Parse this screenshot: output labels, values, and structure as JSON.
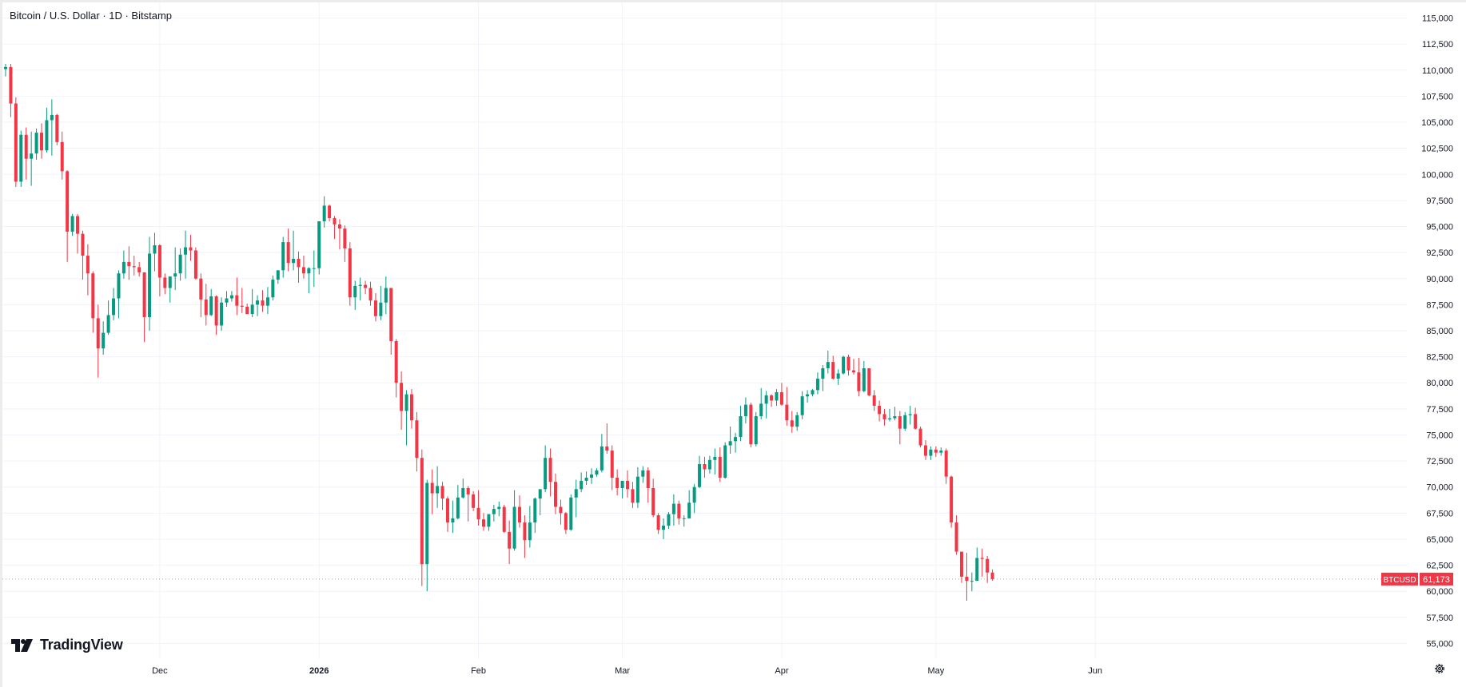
{
  "header": {
    "title": "Bitcoin / U.S. Dollar · 1D · Bitstamp"
  },
  "branding": {
    "logo_text": "TradingView"
  },
  "colors": {
    "up": "#089981",
    "down": "#f23645",
    "grid": "#f0f3fa",
    "text": "#131722",
    "price_label_bg": "#f23645"
  },
  "icons": [
    "tradingview-logo-icon",
    "gear-icon"
  ],
  "price_label": {
    "symbol": "BTCUSD",
    "value": "61,173"
  },
  "chart_data": {
    "type": "candlestick",
    "y_ticks": [
      "115,000",
      "112,500",
      "110,000",
      "107,500",
      "105,000",
      "102,500",
      "100,000",
      "97,500",
      "95,000",
      "92,500",
      "90,000",
      "87,500",
      "85,000",
      "82,500",
      "80,000",
      "77,500",
      "75,000",
      "72,500",
      "70,000",
      "67,500",
      "65,000",
      "62,500",
      "60,000",
      "57,500",
      "55,000"
    ],
    "ylim": [
      53500,
      116500
    ],
    "x_ticks": [
      {
        "label": "Dec",
        "date": "2025-12-01"
      },
      {
        "label": "2026",
        "date": "2026-01-01"
      },
      {
        "label": "Feb",
        "date": "2026-02-01"
      },
      {
        "label": "Mar",
        "date": "2026-03-01"
      },
      {
        "label": "Apr",
        "date": "2026-04-01"
      },
      {
        "label": "May",
        "date": "2026-05-01"
      },
      {
        "label": "Jun",
        "date": "2026-06-01"
      }
    ],
    "first_date": "2025-11-01",
    "last_price": 61173,
    "candles": [
      [
        110100,
        110600,
        109400,
        110300
      ],
      [
        110300,
        110600,
        105500,
        106800
      ],
      [
        106800,
        107400,
        98800,
        99300
      ],
      [
        99300,
        104200,
        98800,
        103800
      ],
      [
        103800,
        104500,
        99500,
        101500
      ],
      [
        101500,
        104100,
        98900,
        102000
      ],
      [
        102000,
        104400,
        101400,
        104000
      ],
      [
        104000,
        104900,
        101500,
        102300
      ],
      [
        102300,
        106400,
        102100,
        105200
      ],
      [
        105200,
        107200,
        101800,
        105700
      ],
      [
        105700,
        105800,
        102800,
        103100
      ],
      [
        103100,
        104100,
        99500,
        100300
      ],
      [
        100300,
        100400,
        91600,
        94500
      ],
      [
        94500,
        96200,
        94100,
        96000
      ],
      [
        96000,
        96200,
        92400,
        94300
      ],
      [
        94300,
        94600,
        89900,
        92200
      ],
      [
        92200,
        93300,
        88400,
        90500
      ],
      [
        90500,
        90700,
        84800,
        86200
      ],
      [
        86200,
        87500,
        80500,
        83300
      ],
      [
        83300,
        85900,
        82700,
        84800
      ],
      [
        84800,
        87900,
        84600,
        86500
      ],
      [
        86500,
        89100,
        86000,
        88100
      ],
      [
        88100,
        90800,
        86200,
        90500
      ],
      [
        90500,
        92700,
        90000,
        91600
      ],
      [
        91600,
        93100,
        89900,
        91200
      ],
      [
        91200,
        92200,
        90300,
        91100
      ],
      [
        91100,
        91600,
        90200,
        90600
      ],
      [
        90600,
        90600,
        83900,
        86300
      ],
      [
        86300,
        94000,
        85000,
        92400
      ],
      [
        92400,
        94400,
        90700,
        93200
      ],
      [
        93200,
        93300,
        88300,
        90100
      ],
      [
        90100,
        90500,
        88500,
        89100
      ],
      [
        89100,
        90100,
        87700,
        90200
      ],
      [
        90200,
        93000,
        88900,
        90500
      ],
      [
        90500,
        92900,
        89800,
        92300
      ],
      [
        92300,
        94600,
        90000,
        93000
      ],
      [
        93000,
        94200,
        91700,
        92700
      ],
      [
        92700,
        93000,
        89900,
        90000
      ],
      [
        90000,
        90500,
        86300,
        88000
      ],
      [
        88000,
        89500,
        85500,
        86500
      ],
      [
        86500,
        89000,
        86400,
        88300
      ],
      [
        88300,
        88400,
        84600,
        85500
      ],
      [
        85500,
        88200,
        85000,
        87700
      ],
      [
        87700,
        88800,
        87300,
        88100
      ],
      [
        88100,
        88800,
        87800,
        88400
      ],
      [
        88400,
        90100,
        86500,
        87400
      ],
      [
        87400,
        89100,
        86700,
        87300
      ],
      [
        87300,
        87600,
        86600,
        86600
      ],
      [
        86600,
        89000,
        86300,
        87500
      ],
      [
        87500,
        88400,
        86400,
        87900
      ],
      [
        87900,
        88900,
        86800,
        87400
      ],
      [
        87400,
        89200,
        86600,
        88200
      ],
      [
        88200,
        90300,
        87900,
        89900
      ],
      [
        89900,
        90800,
        89500,
        90800
      ],
      [
        90800,
        94000,
        90100,
        93500
      ],
      [
        93500,
        94800,
        90700,
        91500
      ],
      [
        91500,
        94600,
        90800,
        91900
      ],
      [
        91900,
        92600,
        89600,
        91100
      ],
      [
        91100,
        92200,
        90000,
        90500
      ],
      [
        90500,
        91100,
        88600,
        91000
      ],
      [
        91000,
        92700,
        89200,
        91000
      ],
      [
        91000,
        95500,
        90400,
        95500
      ],
      [
        95500,
        97900,
        94900,
        97000
      ],
      [
        97000,
        97100,
        95500,
        95800
      ],
      [
        95800,
        96000,
        93800,
        95200
      ],
      [
        95200,
        95700,
        92800,
        94800
      ],
      [
        94800,
        95100,
        91600,
        92900
      ],
      [
        92900,
        93500,
        87400,
        88200
      ],
      [
        88200,
        89800,
        87000,
        89300
      ],
      [
        89300,
        90100,
        87900,
        89400
      ],
      [
        89400,
        89800,
        88500,
        89100
      ],
      [
        89100,
        89700,
        87400,
        87900
      ],
      [
        87900,
        88600,
        85900,
        86400
      ],
      [
        86400,
        89300,
        86000,
        87700
      ],
      [
        87700,
        90200,
        86600,
        89100
      ],
      [
        89100,
        89100,
        82700,
        84000
      ],
      [
        84000,
        84200,
        78600,
        80000
      ],
      [
        80000,
        81100,
        75500,
        77300
      ],
      [
        77300,
        79300,
        74000,
        78900
      ],
      [
        78900,
        79400,
        75600,
        76400
      ],
      [
        76400,
        77200,
        71500,
        72800
      ],
      [
        72800,
        73600,
        60500,
        62600
      ],
      [
        62600,
        70700,
        60000,
        70400
      ],
      [
        70400,
        71700,
        67400,
        69400
      ],
      [
        69400,
        72000,
        68000,
        70100
      ],
      [
        70100,
        70500,
        67800,
        68900
      ],
      [
        68900,
        69100,
        65700,
        66600
      ],
      [
        66600,
        68700,
        65600,
        67000
      ],
      [
        67000,
        70200,
        66900,
        69000
      ],
      [
        69000,
        70800,
        68900,
        69900
      ],
      [
        69900,
        70100,
        66700,
        69300
      ],
      [
        69300,
        69600,
        67700,
        68000
      ],
      [
        68000,
        69700,
        66300,
        66900
      ],
      [
        66900,
        67500,
        65800,
        66200
      ],
      [
        66200,
        67400,
        65800,
        67400
      ],
      [
        67400,
        68300,
        66700,
        67900
      ],
      [
        67900,
        68600,
        67200,
        68100
      ],
      [
        68100,
        68300,
        65600,
        65700
      ],
      [
        65700,
        66800,
        62600,
        64100
      ],
      [
        64100,
        69700,
        63900,
        68100
      ],
      [
        68100,
        69200,
        66100,
        66600
      ],
      [
        66600,
        67300,
        63200,
        64900
      ],
      [
        64900,
        68200,
        64200,
        66600
      ],
      [
        66600,
        69000,
        65600,
        68900
      ],
      [
        68900,
        69600,
        67300,
        69800
      ],
      [
        69800,
        74000,
        69500,
        72800
      ],
      [
        72800,
        73700,
        69100,
        70500
      ],
      [
        70500,
        71300,
        67400,
        68100
      ],
      [
        68100,
        68800,
        66400,
        67500
      ],
      [
        67500,
        67600,
        65500,
        65900
      ],
      [
        65900,
        69300,
        65800,
        69000
      ],
      [
        69000,
        70700,
        67100,
        69800
      ],
      [
        69800,
        71400,
        69500,
        70600
      ],
      [
        70600,
        71500,
        70200,
        70900
      ],
      [
        70900,
        71800,
        70300,
        71200
      ],
      [
        71200,
        71800,
        71000,
        71600
      ],
      [
        71600,
        75100,
        71400,
        73900
      ],
      [
        73900,
        76100,
        73200,
        73500
      ],
      [
        73500,
        74000,
        69700,
        70900
      ],
      [
        70900,
        71700,
        69200,
        69900
      ],
      [
        69900,
        70600,
        68900,
        70600
      ],
      [
        70600,
        71600,
        69000,
        69800
      ],
      [
        69800,
        70500,
        68000,
        68500
      ],
      [
        68500,
        71900,
        68000,
        71000
      ],
      [
        71000,
        72000,
        70400,
        71600
      ],
      [
        71600,
        71900,
        68500,
        69900
      ],
      [
        69900,
        70800,
        67100,
        67300
      ],
      [
        67300,
        67500,
        65500,
        65900
      ],
      [
        65900,
        67000,
        65000,
        66300
      ],
      [
        66300,
        67600,
        66000,
        67400
      ],
      [
        67400,
        69300,
        66300,
        68400
      ],
      [
        68400,
        68700,
        66400,
        67000
      ],
      [
        67000,
        67300,
        66200,
        67000
      ],
      [
        67000,
        69700,
        67000,
        68500
      ],
      [
        68500,
        70300,
        67500,
        70000
      ],
      [
        70000,
        73000,
        69900,
        72200
      ],
      [
        72200,
        72900,
        70900,
        71700
      ],
      [
        71700,
        73000,
        71300,
        72600
      ],
      [
        72600,
        73700,
        71200,
        72900
      ],
      [
        72900,
        73800,
        70500,
        70900
      ],
      [
        70900,
        74300,
        70800,
        74000
      ],
      [
        74000,
        75800,
        73200,
        74400
      ],
      [
        74400,
        75200,
        73300,
        74800
      ],
      [
        74800,
        77800,
        74400,
        76800
      ],
      [
        76800,
        78600,
        76100,
        77900
      ],
      [
        77900,
        78100,
        73800,
        74100
      ],
      [
        74100,
        77200,
        73900,
        76800
      ],
      [
        76800,
        79500,
        76500,
        78000
      ],
      [
        78000,
        79200,
        76600,
        78800
      ],
      [
        78800,
        78900,
        77700,
        78300
      ],
      [
        78300,
        79400,
        77800,
        79100
      ],
      [
        79100,
        80000,
        77800,
        77900
      ],
      [
        77900,
        79600,
        75900,
        76400
      ],
      [
        76400,
        77300,
        75200,
        75800
      ],
      [
        75800,
        77200,
        75400,
        76900
      ],
      [
        76900,
        79200,
        76500,
        78700
      ],
      [
        78700,
        79300,
        78100,
        78900
      ],
      [
        78900,
        79400,
        78700,
        79300
      ],
      [
        79300,
        81000,
        78900,
        80400
      ],
      [
        80400,
        81700,
        79200,
        81400
      ],
      [
        81400,
        83100,
        80900,
        82000
      ],
      [
        82000,
        82600,
        80300,
        80400
      ],
      [
        80400,
        81300,
        79800,
        80900
      ],
      [
        80900,
        82600,
        80800,
        82500
      ],
      [
        82500,
        82700,
        80700,
        81200
      ],
      [
        81200,
        82300,
        80800,
        81000
      ],
      [
        81000,
        82400,
        78700,
        79200
      ],
      [
        79200,
        82100,
        79100,
        81400
      ],
      [
        81400,
        81400,
        78700,
        78800
      ],
      [
        78800,
        79300,
        77300,
        77800
      ],
      [
        77800,
        78300,
        76300,
        77000
      ],
      [
        77000,
        77500,
        75900,
        76500
      ],
      [
        76500,
        77500,
        76300,
        76600
      ],
      [
        76600,
        77700,
        76400,
        76800
      ],
      [
        76800,
        77300,
        74100,
        75600
      ],
      [
        75600,
        77200,
        75400,
        76900
      ],
      [
        76900,
        77800,
        76000,
        77000
      ],
      [
        77000,
        77600,
        75500,
        75600
      ],
      [
        75600,
        75800,
        73800,
        74000
      ],
      [
        74000,
        74500,
        72600,
        73000
      ],
      [
        73000,
        73900,
        72600,
        73600
      ],
      [
        73600,
        73900,
        72900,
        73300
      ],
      [
        73300,
        73800,
        73000,
        73500
      ],
      [
        73500,
        73700,
        70300,
        71000
      ],
      [
        71000,
        71100,
        66100,
        66600
      ],
      [
        66600,
        67300,
        63500,
        63800
      ],
      [
        63800,
        63800,
        60800,
        61400
      ],
      [
        61400,
        63700,
        59100,
        61000
      ],
      [
        61000,
        61800,
        60000,
        61000
      ],
      [
        61000,
        64200,
        61000,
        63200
      ],
      [
        63200,
        64100,
        61400,
        63100
      ],
      [
        63100,
        63400,
        60800,
        61800
      ],
      [
        61800,
        62100,
        61000,
        61173
      ]
    ]
  }
}
